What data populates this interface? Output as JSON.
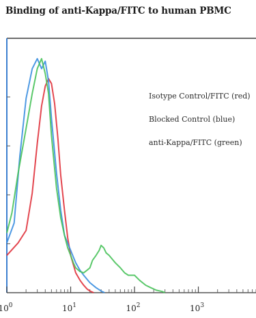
{
  "chart_data": {
    "type": "line",
    "title": "Binding of anti-Kappa/FITC to human PBMC",
    "xlabel": "",
    "ylabel": "",
    "x_scale": "log",
    "xlim": [
      1,
      8000
    ],
    "ylim": [
      0,
      100
    ],
    "x_ticks": [
      {
        "value": 1,
        "label": "10^0"
      },
      {
        "value": 10,
        "label": "10^1"
      },
      {
        "value": 100,
        "label": "10^2"
      },
      {
        "value": 1000,
        "label": "10^3"
      }
    ],
    "legend": {
      "placement": "right",
      "entries": [
        "Isotype Control/FITC (red)",
        "Blocked Control (blue)",
        "anti-Kappa/FITC (green)"
      ]
    },
    "series": [
      {
        "name": "Isotype Control/FITC (red)",
        "color": "#e0323c",
        "x": [
          1,
          1.5,
          2,
          2.5,
          3,
          3.5,
          4,
          4.5,
          5,
          5.6,
          6.3,
          7,
          8,
          9,
          10,
          12,
          14,
          16,
          18,
          20,
          23
        ],
        "y": [
          15,
          20,
          25,
          40,
          60,
          75,
          83,
          86,
          84,
          76,
          62,
          47,
          33,
          22,
          15,
          8,
          5,
          3,
          1.5,
          0.7,
          0
        ]
      },
      {
        "name": "Blocked Control (blue)",
        "color": "#3a8ee0",
        "x": [
          1,
          1.3,
          1.6,
          2,
          2.5,
          3,
          3.5,
          4,
          4.5,
          5,
          6,
          7,
          8,
          10,
          12,
          14,
          16,
          20,
          25,
          30,
          34
        ],
        "y": [
          20,
          28,
          55,
          78,
          90,
          94,
          90,
          93,
          85,
          70,
          48,
          33,
          23,
          17,
          12,
          9,
          7,
          4,
          2,
          0.7,
          0
        ]
      },
      {
        "name": "anti-Kappa/FITC (green)",
        "color": "#48c25a",
        "x": [
          1,
          1.2,
          1.5,
          2,
          2.5,
          3,
          3.5,
          4,
          4.5,
          5,
          6,
          7,
          8,
          9,
          10,
          11,
          12,
          14,
          16,
          18,
          20,
          22,
          25,
          28,
          30,
          33,
          36,
          40,
          50,
          60,
          70,
          80,
          100,
          120,
          150,
          180,
          220,
          270,
          300
        ],
        "y": [
          24,
          32,
          48,
          66,
          80,
          90,
          94,
          88,
          80,
          63,
          42,
          30,
          23,
          18,
          15,
          12,
          10,
          8.5,
          8,
          9,
          10,
          13,
          15,
          17,
          19,
          18,
          16,
          15,
          12,
          10,
          8,
          7,
          7,
          5,
          3,
          2,
          1,
          0.5,
          0
        ]
      }
    ]
  }
}
